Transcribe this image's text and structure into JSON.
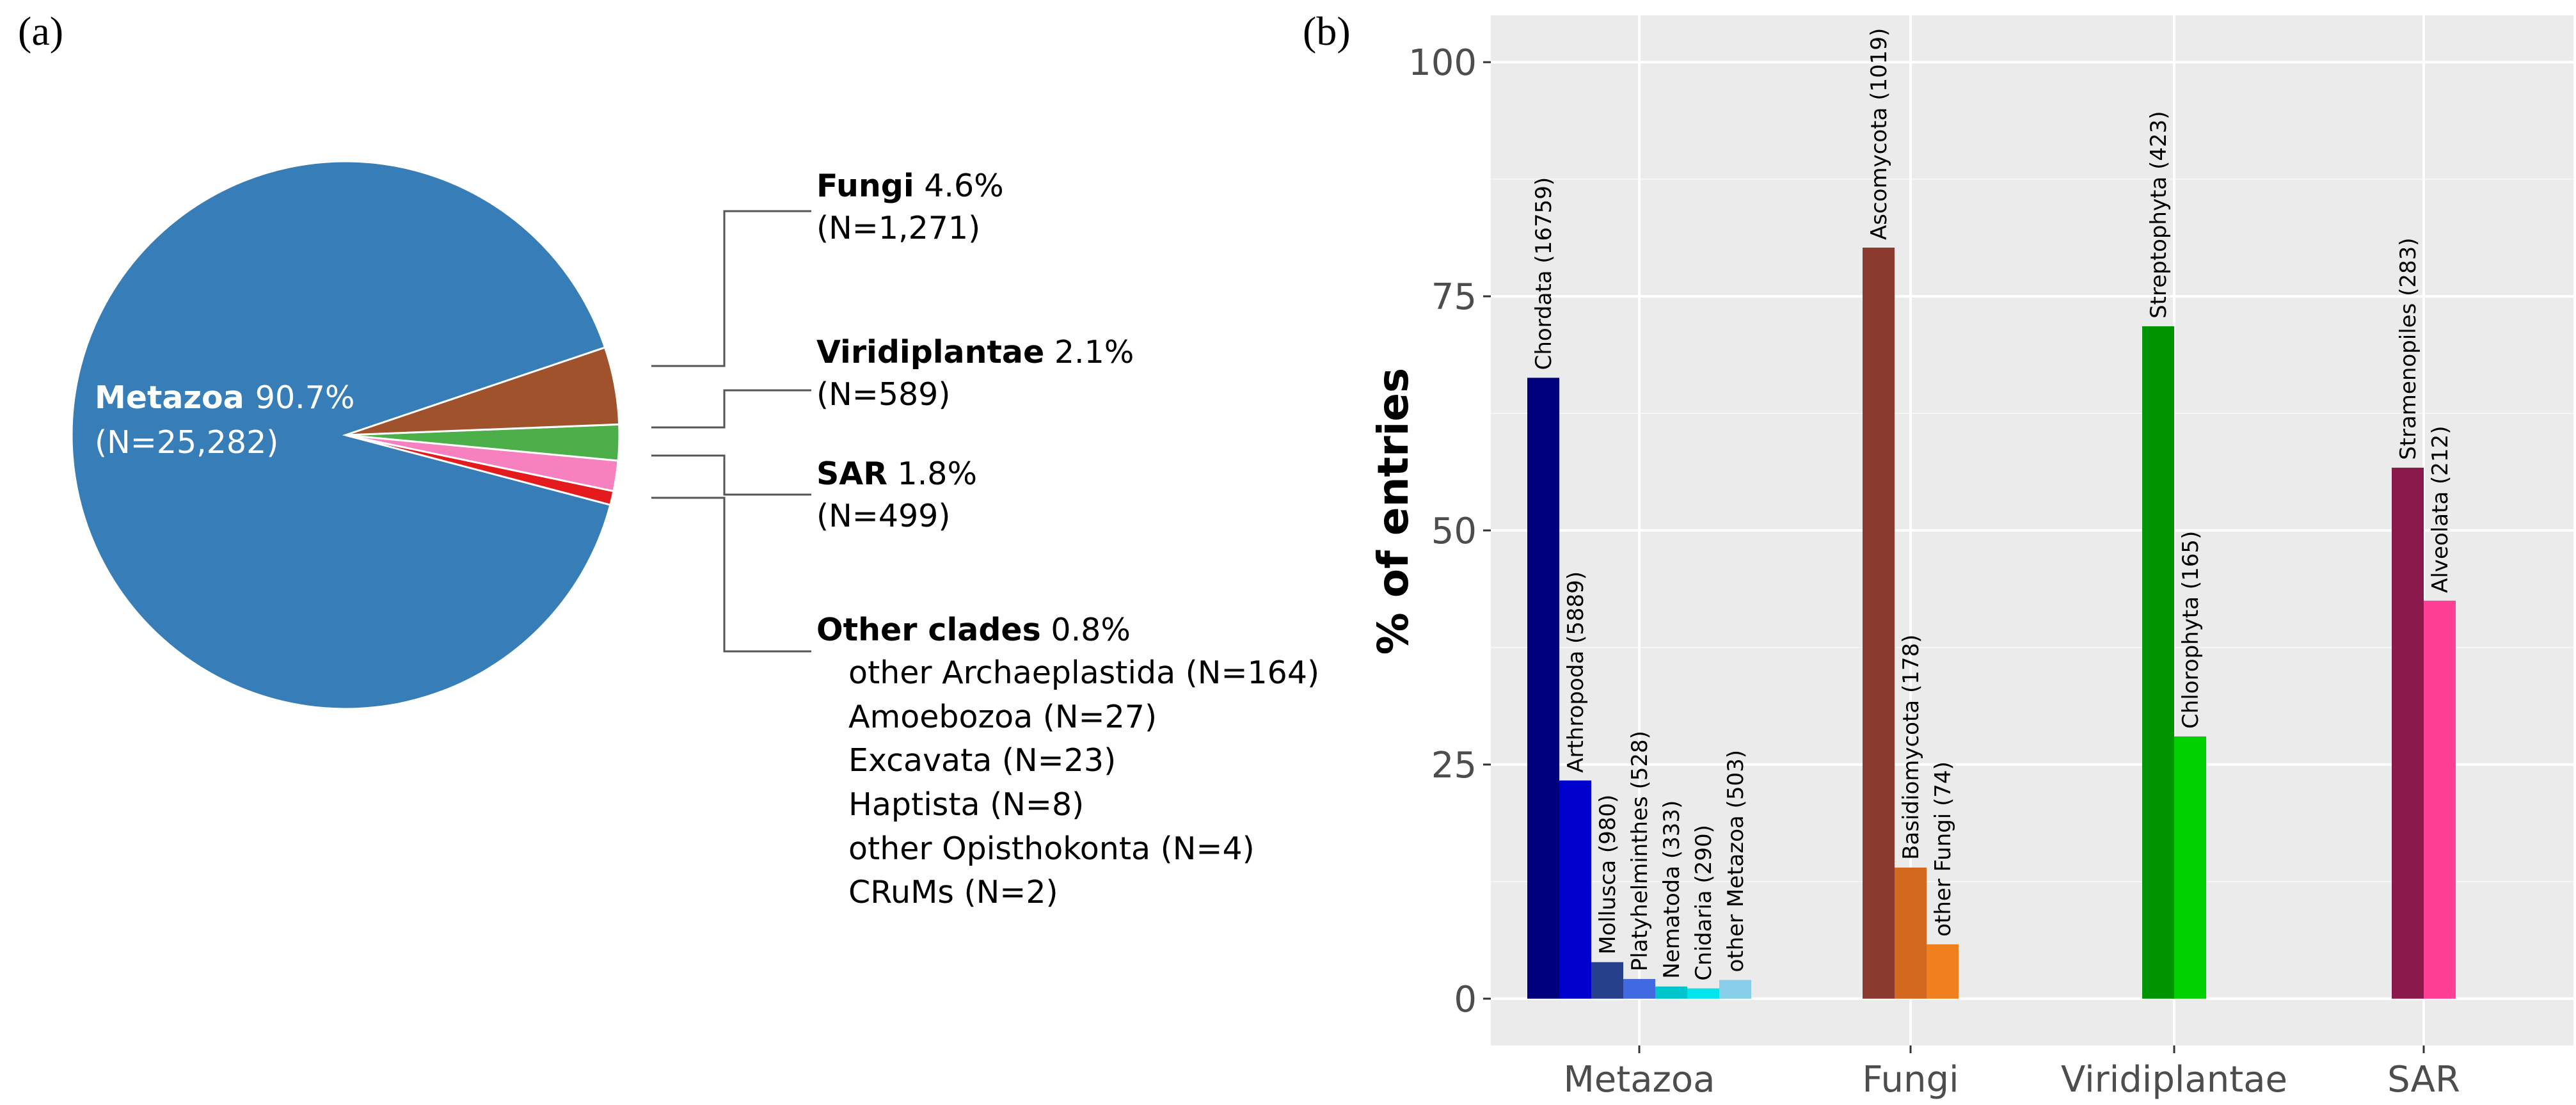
{
  "panel_labels": {
    "a": "(a)",
    "b": "(b)"
  },
  "chart_data": [
    {
      "type": "pie",
      "slices": [
        {
          "name": "Metazoa",
          "pct": "90.7%",
          "n": "(N=25,282)",
          "value": 25282,
          "color": "#377eb8"
        },
        {
          "name": "Fungi",
          "pct": "4.6%",
          "n": "(N=1,271)",
          "value": 1271,
          "color": "#a0522d"
        },
        {
          "name": "Viridiplantae",
          "pct": "2.1%",
          "n": "(N=589)",
          "value": 589,
          "color": "#4daf4a"
        },
        {
          "name": "SAR",
          "pct": "1.8%",
          "n": "(N=499)",
          "value": 499,
          "color": "#f781bf"
        },
        {
          "name": "Other clades",
          "pct": "0.8%",
          "n": "",
          "value": 228,
          "color": "#e41a1c"
        }
      ],
      "other_clades": [
        "other Archaeplastida (N=164)",
        "Amoebozoa (N=27)",
        "Excavata (N=23)",
        "Haptista (N=8)",
        "other Opisthokonta (N=4)",
        "CRuMs (N=2)"
      ]
    },
    {
      "type": "bar",
      "ylabel": "% of entries",
      "ylim": [
        -5,
        105
      ],
      "yticks": [
        0,
        25,
        50,
        75,
        100
      ],
      "grid": true,
      "groups": [
        {
          "name": "Metazoa",
          "bars": [
            {
              "label": "Chordata (16759)",
              "value": 66.3,
              "color": "#00007f"
            },
            {
              "label": "Arthropoda (5889)",
              "value": 23.3,
              "color": "#0000cd"
            },
            {
              "label": "Mollusca (980)",
              "value": 3.9,
              "color": "#27408b"
            },
            {
              "label": "Platyhelminthes (528)",
              "value": 2.1,
              "color": "#4169e1"
            },
            {
              "label": "Nematoda (333)",
              "value": 1.3,
              "color": "#00c5cd"
            },
            {
              "label": "Cnidaria (290)",
              "value": 1.1,
              "color": "#00e5ee"
            },
            {
              "label": "other Metazoa (503)",
              "value": 2.0,
              "color": "#87ceeb"
            }
          ]
        },
        {
          "name": "Fungi",
          "bars": [
            {
              "label": "Ascomycota (1019)",
              "value": 80.2,
              "color": "#8b3a2f"
            },
            {
              "label": "Basidiomycota (178)",
              "value": 14.0,
              "color": "#d2691e"
            },
            {
              "label": "other Fungi (74)",
              "value": 5.8,
              "color": "#f07f1e"
            }
          ]
        },
        {
          "name": "Viridiplantae",
          "bars": [
            {
              "label": "Streptophyta (423)",
              "value": 71.8,
              "color": "#009400"
            },
            {
              "label": "Chlorophyta (165)",
              "value": 28.0,
              "color": "#00d000"
            }
          ]
        },
        {
          "name": "SAR",
          "bars": [
            {
              "label": "Stramenopiles (283)",
              "value": 56.7,
              "color": "#8b1a4c"
            },
            {
              "label": "Alveolata (212)",
              "value": 42.5,
              "color": "#ff3e96"
            }
          ]
        }
      ]
    }
  ]
}
